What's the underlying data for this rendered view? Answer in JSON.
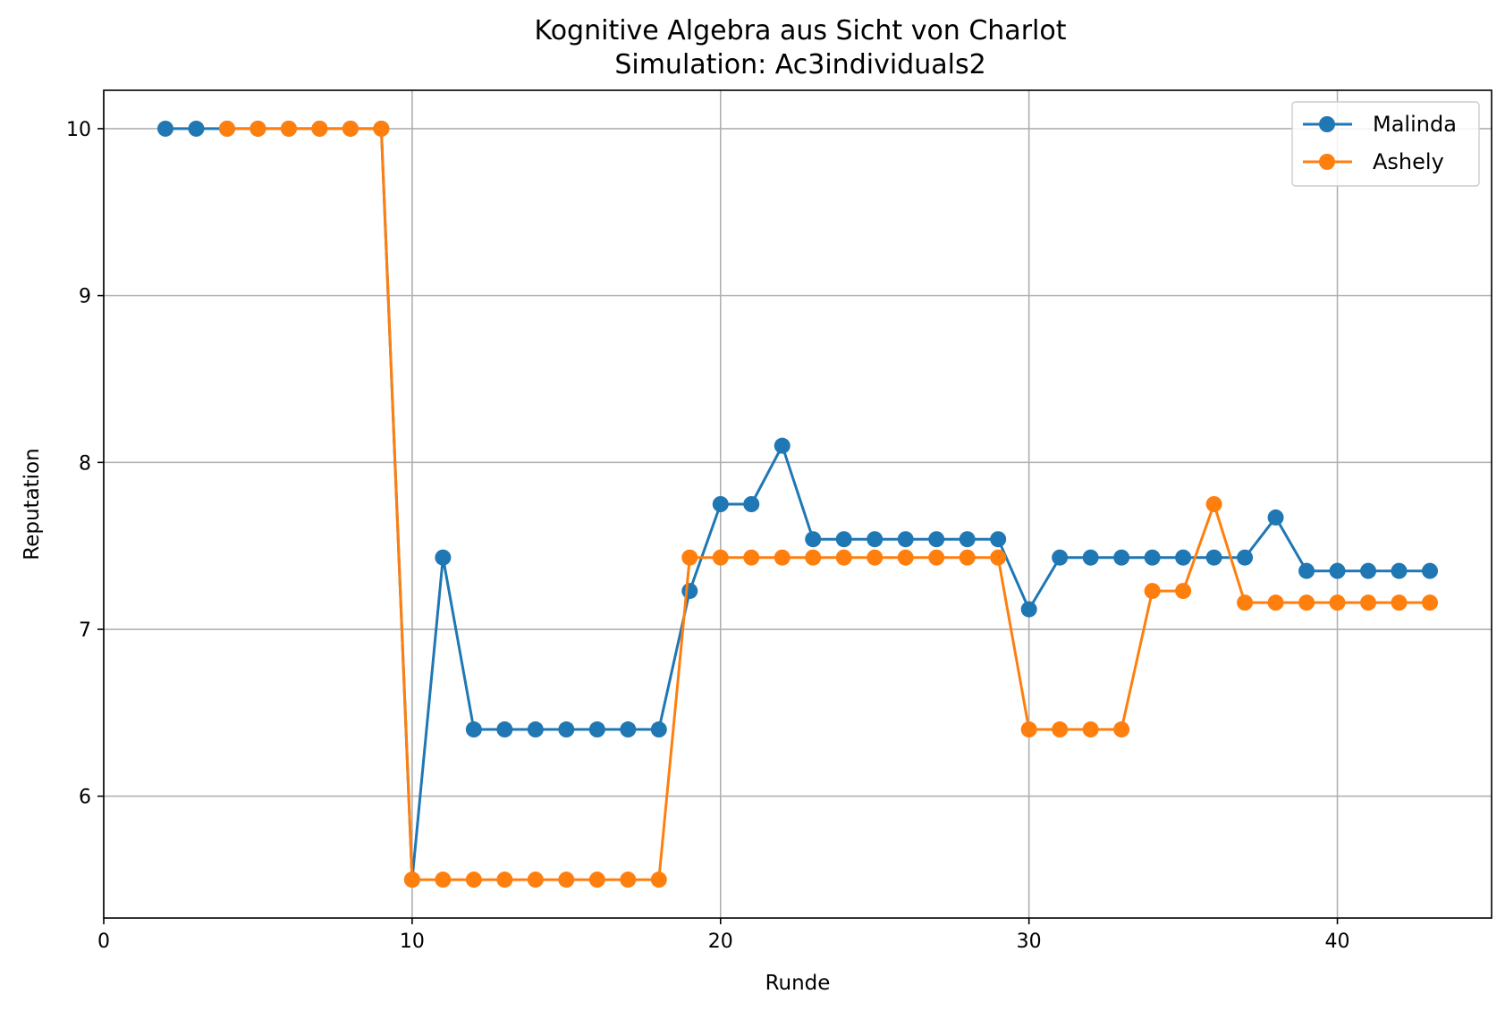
{
  "chart_data": {
    "type": "line",
    "title": "Kognitive Algebra aus Sicht von Charlot",
    "subtitle": "Simulation: Ac3individuals2",
    "xlabel": "Runde",
    "ylabel": "Reputation",
    "xlim": [
      0,
      45
    ],
    "ylim": [
      5.27,
      10.23
    ],
    "xticks": [
      0,
      10,
      20,
      30,
      40
    ],
    "yticks": [
      6,
      7,
      8,
      9,
      10
    ],
    "grid": true,
    "legend_position": "top-right",
    "series": [
      {
        "name": "Malinda",
        "color": "#1f77b4",
        "x": [
          2,
          3,
          4,
          5,
          6,
          7,
          8,
          9,
          10,
          11,
          12,
          13,
          14,
          15,
          16,
          17,
          18,
          19,
          20,
          21,
          22,
          23,
          24,
          25,
          26,
          27,
          28,
          29,
          30,
          31,
          32,
          33,
          34,
          35,
          36,
          37,
          38,
          39,
          40,
          41,
          42,
          43
        ],
        "y": [
          10,
          10,
          10,
          10,
          10,
          10,
          10,
          10,
          5.5,
          7.43,
          6.4,
          6.4,
          6.4,
          6.4,
          6.4,
          6.4,
          6.4,
          7.23,
          7.75,
          7.75,
          8.1,
          7.54,
          7.54,
          7.54,
          7.54,
          7.54,
          7.54,
          7.54,
          7.12,
          7.43,
          7.43,
          7.43,
          7.43,
          7.43,
          7.43,
          7.43,
          7.67,
          7.35,
          7.35,
          7.35,
          7.35,
          7.35
        ]
      },
      {
        "name": "Ashely",
        "color": "#ff7f0e",
        "x": [
          4,
          5,
          6,
          7,
          8,
          9,
          10,
          11,
          12,
          13,
          14,
          15,
          16,
          17,
          18,
          19,
          20,
          21,
          22,
          23,
          24,
          25,
          26,
          27,
          28,
          29,
          30,
          31,
          32,
          33,
          34,
          35,
          36,
          37,
          38,
          39,
          40,
          41,
          42,
          43
        ],
        "y": [
          10,
          10,
          10,
          10,
          10,
          10,
          5.5,
          5.5,
          5.5,
          5.5,
          5.5,
          5.5,
          5.5,
          5.5,
          5.5,
          7.43,
          7.43,
          7.43,
          7.43,
          7.43,
          7.43,
          7.43,
          7.43,
          7.43,
          7.43,
          7.43,
          6.4,
          6.4,
          6.4,
          6.4,
          7.23,
          7.23,
          7.75,
          7.16,
          7.16,
          7.16,
          7.16,
          7.16,
          7.16,
          7.16
        ]
      }
    ]
  }
}
